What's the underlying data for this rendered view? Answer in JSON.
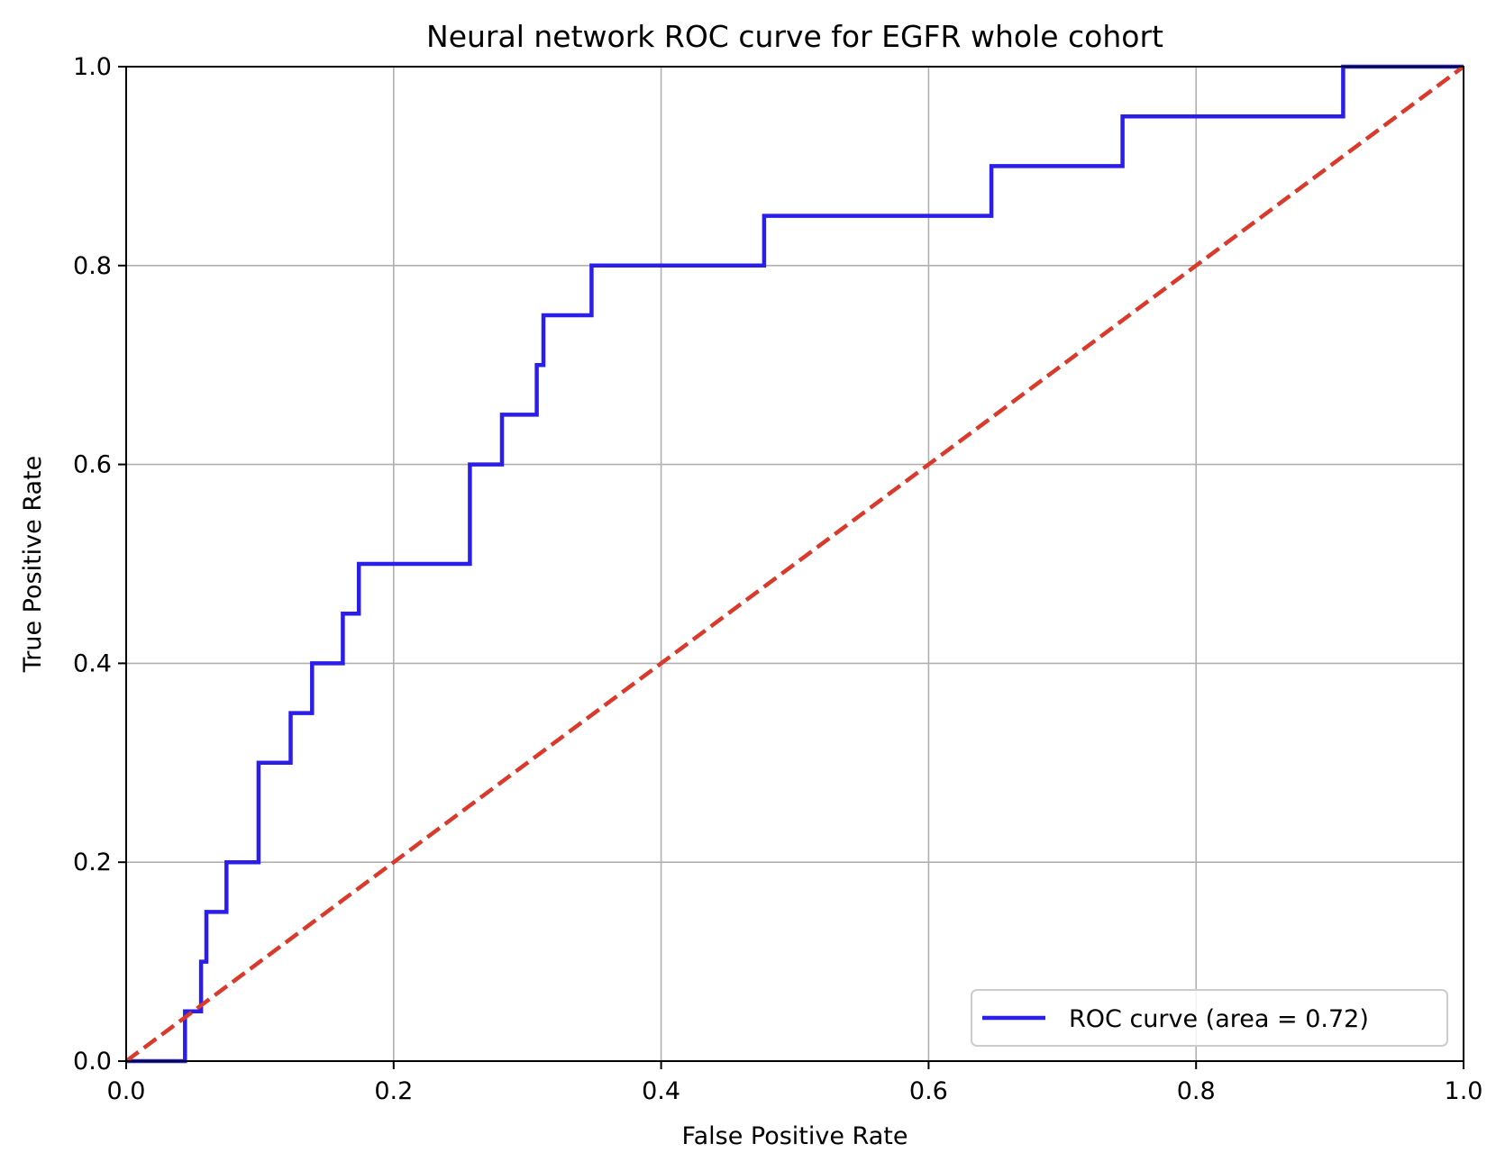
{
  "chart_data": {
    "type": "line",
    "title": "Neural network ROC curve for EGFR whole cohort",
    "xlabel": "False Positive Rate",
    "ylabel": "True Positive Rate",
    "xlim": [
      0.0,
      1.0
    ],
    "ylim": [
      0.0,
      1.0
    ],
    "grid": true,
    "x_ticks": [
      "0.0",
      "0.2",
      "0.4",
      "0.6",
      "0.8",
      "1.0"
    ],
    "y_ticks": [
      "0.0",
      "0.2",
      "0.4",
      "0.6",
      "0.8",
      "1.0"
    ],
    "legend": {
      "position": "lower-right",
      "entries": [
        "ROC curve (area = 0.72)"
      ]
    },
    "series": [
      {
        "name": "ROC curve (area = 0.72)",
        "color": "#2b1ee8",
        "style": "solid-step",
        "x": [
          0.0,
          0.044,
          0.044,
          0.056,
          0.056,
          0.06,
          0.06,
          0.075,
          0.075,
          0.099,
          0.099,
          0.123,
          0.123,
          0.139,
          0.139,
          0.162,
          0.162,
          0.174,
          0.174,
          0.257,
          0.257,
          0.281,
          0.281,
          0.307,
          0.307,
          0.312,
          0.312,
          0.348,
          0.348,
          0.477,
          0.477,
          0.647,
          0.647,
          0.745,
          0.745,
          0.91,
          0.91,
          1.0
        ],
        "y": [
          0.0,
          0.0,
          0.05,
          0.05,
          0.1,
          0.1,
          0.15,
          0.15,
          0.2,
          0.2,
          0.3,
          0.3,
          0.35,
          0.35,
          0.4,
          0.4,
          0.45,
          0.45,
          0.5,
          0.5,
          0.6,
          0.6,
          0.65,
          0.65,
          0.7,
          0.7,
          0.75,
          0.75,
          0.8,
          0.8,
          0.85,
          0.85,
          0.9,
          0.9,
          0.95,
          0.95,
          1.0,
          1.0
        ]
      },
      {
        "color": "#d93a2b",
        "style": "dashed",
        "x": [
          0.0,
          1.0
        ],
        "y": [
          0.0,
          1.0
        ]
      }
    ]
  }
}
